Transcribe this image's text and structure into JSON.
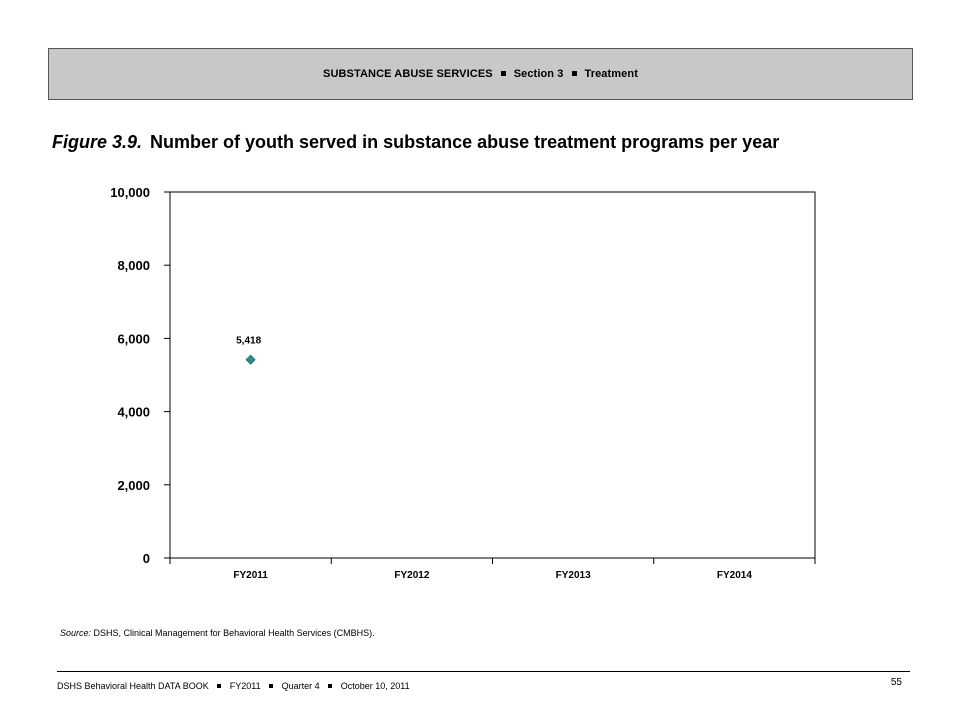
{
  "header": {
    "parts": [
      "SUBSTANCE ABUSE SERVICES",
      "Section 3",
      "Treatment"
    ]
  },
  "title": {
    "figure_label": "Figure 3.9.",
    "text": "Number of youth served in substance abuse treatment programs per year"
  },
  "chart_data": {
    "type": "line",
    "title": "",
    "xlabel": "",
    "ylabel": "",
    "categories": [
      "FY2011",
      "FY2012",
      "FY2013",
      "FY2014"
    ],
    "series": [
      {
        "values": [
          5418,
          null,
          null,
          null
        ],
        "labels": [
          "5,418",
          null,
          null,
          null
        ],
        "color": "#2e8b8b"
      }
    ],
    "ylim": [
      0,
      10000
    ],
    "yticks": [
      0,
      2000,
      4000,
      6000,
      8000,
      10000
    ],
    "ytick_labels": [
      "0",
      "2,000",
      "4,000",
      "6,000",
      "8,000",
      "10,000"
    ],
    "grid": false,
    "legend": "none"
  },
  "source": {
    "label": "Source:",
    "text": "DSHS, Clinical Management for Behavioral Health Services (CMBHS)."
  },
  "footer": {
    "parts": [
      "DSHS Behavioral Health DATA BOOK",
      "FY2011",
      "Quarter 4",
      "October 10, 2011"
    ],
    "page_number": "55"
  }
}
